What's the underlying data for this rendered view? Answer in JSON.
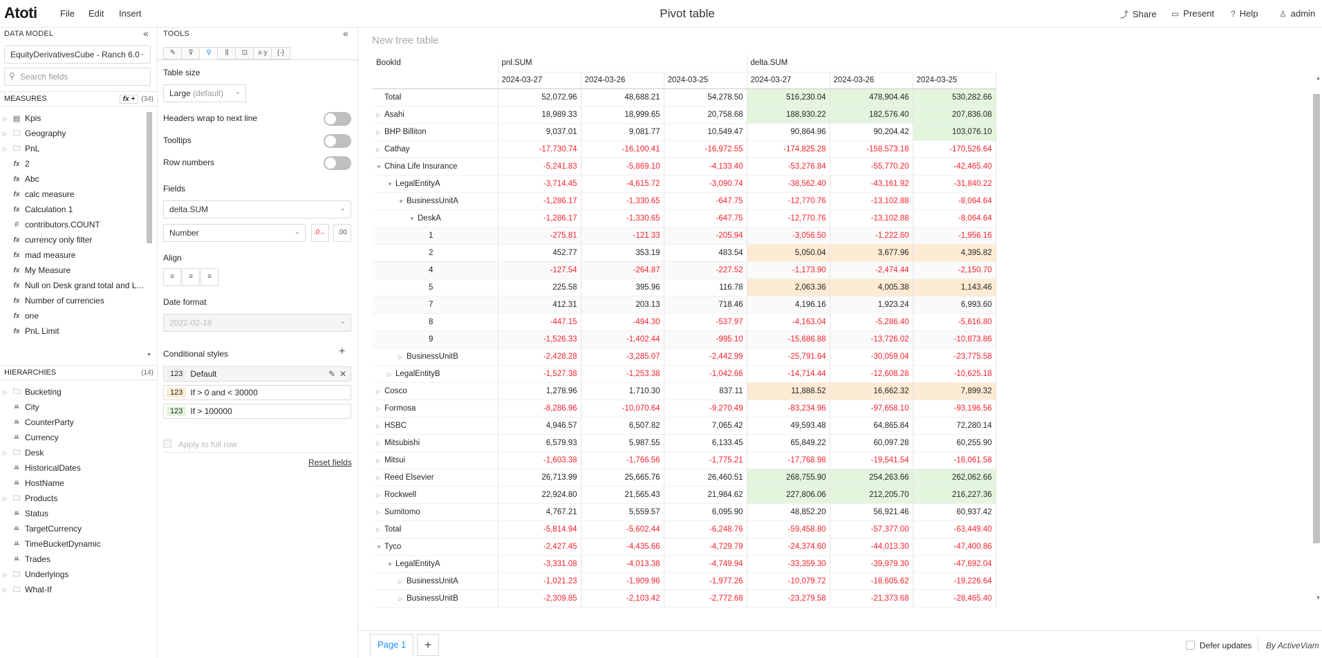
{
  "topbar": {
    "logo": "Atoti",
    "menu": [
      "File",
      "Edit",
      "Insert"
    ],
    "title": "Pivot table",
    "share": "Share",
    "present": "Present",
    "help": "Help",
    "user": "admin"
  },
  "datamodel": {
    "header": "DATA MODEL",
    "cube": "EquityDerivativesCube - Ranch 6.0",
    "search_placeholder": "Search fields",
    "measures_label": "MEASURES",
    "measures_count": "(34)",
    "measures": [
      {
        "icon": "folder",
        "label": "Kpis",
        "caret": true
      },
      {
        "icon": "folder",
        "label": "Geography",
        "caret": true
      },
      {
        "icon": "folder",
        "label": "PnL",
        "caret": true
      },
      {
        "icon": "fx",
        "label": "2"
      },
      {
        "icon": "fx",
        "label": "Abc"
      },
      {
        "icon": "fx",
        "label": "calc measure"
      },
      {
        "icon": "fx",
        "label": "Calculation 1"
      },
      {
        "icon": "#",
        "label": "contributors.COUNT"
      },
      {
        "icon": "fx",
        "label": "currency only filter"
      },
      {
        "icon": "fx",
        "label": "mad measure"
      },
      {
        "icon": "fx",
        "label": "My Measure"
      },
      {
        "icon": "fx",
        "label": "Null on Desk grand total and L..."
      },
      {
        "icon": "fx",
        "label": "Number of currencies"
      },
      {
        "icon": "fx",
        "label": "one"
      },
      {
        "icon": "fx",
        "label": "PnL Limit"
      }
    ],
    "hierarchies_label": "HIERARCHIES",
    "hierarchies_count": "(14)",
    "hierarchies": [
      {
        "label": "Bucketing",
        "caret": true,
        "folder": true
      },
      {
        "label": "City"
      },
      {
        "label": "CounterParty"
      },
      {
        "label": "Currency"
      },
      {
        "label": "Desk",
        "caret": true,
        "folder": true
      },
      {
        "label": "HistoricalDates"
      },
      {
        "label": "HostName"
      },
      {
        "label": "Products",
        "caret": true,
        "folder": true
      },
      {
        "label": "Status"
      },
      {
        "label": "TargetCurrency"
      },
      {
        "label": "TimeBucketDynamic"
      },
      {
        "label": "Trades"
      },
      {
        "label": "Underlyings",
        "caret": true,
        "folder": true
      },
      {
        "label": "What-If",
        "caret": true,
        "folder": true
      }
    ]
  },
  "tools": {
    "header": "TOOLS",
    "tabs": [
      "✎",
      "⊽",
      "⚲",
      "⫼",
      "⊡",
      "x·y",
      "{-}"
    ],
    "table_size_label": "Table size",
    "table_size_value": "Large",
    "table_size_suffix": "(default)",
    "headers_wrap": "Headers wrap to next line",
    "tooltips": "Tooltips",
    "row_numbers": "Row numbers",
    "fields_label": "Fields",
    "field_value": "delta.SUM",
    "format_value": "Number",
    "align_label": "Align",
    "date_format_label": "Date format",
    "date_format_value": "2022-02-18",
    "cond_styles_label": "Conditional styles",
    "cond_styles": [
      {
        "badge": "123",
        "label": "Default",
        "color": "#f0f0f0"
      },
      {
        "badge": "123",
        "label": "If > 0 and < 30000",
        "color": "#fdebd3"
      },
      {
        "badge": "123",
        "label": "If > 100000",
        "color": "#e3f5dd"
      }
    ],
    "apply_full_row": "Apply to full row",
    "reset_fields": "Reset fields"
  },
  "pivot": {
    "title": "New tree table",
    "row_header": "BookId",
    "measure_groups": [
      "pnl.SUM",
      "delta.SUM"
    ],
    "dates": [
      "2024-03-27",
      "2024-03-26",
      "2024-03-25",
      "2024-03-27",
      "2024-03-26",
      "2024-03-25"
    ],
    "rows": [
      {
        "label": "Total",
        "indent": 0,
        "caret": "",
        "values": [
          "52,072.96",
          "48,688.21",
          "54,278.50",
          "516,230.04",
          "478,904.46",
          "530,282.66"
        ],
        "hl": [
          "",
          "",
          "",
          "g",
          "g",
          "g"
        ]
      },
      {
        "label": "Asahi",
        "indent": 0,
        "caret": "r",
        "values": [
          "18,989.33",
          "18,999.65",
          "20,758.68",
          "188,930.22",
          "182,576.40",
          "207,836.08"
        ],
        "hl": [
          "",
          "",
          "",
          "g",
          "g",
          "g"
        ]
      },
      {
        "label": "BHP Billiton",
        "indent": 0,
        "caret": "r",
        "values": [
          "9,037.01",
          "9,081.77",
          "10,549.47",
          "90,864.96",
          "90,204.42",
          "103,076.10"
        ],
        "hl": [
          "",
          "",
          "",
          "",
          "",
          "g"
        ]
      },
      {
        "label": "Cathay",
        "indent": 0,
        "caret": "r",
        "values": [
          "-17,730.74",
          "-16,100.41",
          "-16,972.55",
          "-174,825.28",
          "-158,573.18",
          "-170,526.64"
        ],
        "hl": [
          "",
          "",
          "",
          "",
          "",
          ""
        ]
      },
      {
        "label": "China Life Insurance",
        "indent": 0,
        "caret": "d",
        "values": [
          "-5,241.83",
          "-5,869.10",
          "-4,133.40",
          "-53,276.84",
          "-55,770.20",
          "-42,465.40"
        ],
        "hl": [
          "",
          "",
          "",
          "",
          "",
          ""
        ]
      },
      {
        "label": "LegalEntityA",
        "indent": 1,
        "caret": "d",
        "values": [
          "-3,714.45",
          "-4,615.72",
          "-3,090.74",
          "-38,562.40",
          "-43,161.92",
          "-31,840.22"
        ],
        "hl": [
          "",
          "",
          "",
          "",
          "",
          ""
        ]
      },
      {
        "label": "BusinessUnitA",
        "indent": 2,
        "caret": "d",
        "values": [
          "-1,286.17",
          "-1,330.65",
          "-647.75",
          "-12,770.76",
          "-13,102.88",
          "-8,064.64"
        ],
        "hl": [
          "",
          "",
          "",
          "",
          "",
          ""
        ]
      },
      {
        "label": "DeskA",
        "indent": 3,
        "caret": "d",
        "values": [
          "-1,286.17",
          "-1,330.65",
          "-647.75",
          "-12,770.76",
          "-13,102.88",
          "-8,064.64"
        ],
        "hl": [
          "",
          "",
          "",
          "",
          "",
          ""
        ]
      },
      {
        "label": "1",
        "indent": 4,
        "caret": "",
        "alt": true,
        "values": [
          "-275.81",
          "-121.33",
          "-205.94",
          "-3,056.50",
          "-1,222.60",
          "-1,956.16"
        ],
        "hl": [
          "",
          "",
          "",
          "",
          "",
          ""
        ]
      },
      {
        "label": "2",
        "indent": 4,
        "caret": "",
        "values": [
          "452.77",
          "353.19",
          "483.54",
          "5,050.04",
          "3,677.96",
          "4,395.82"
        ],
        "hl": [
          "",
          "",
          "",
          "o",
          "o",
          "o"
        ]
      },
      {
        "label": "4",
        "indent": 4,
        "caret": "",
        "alt": true,
        "values": [
          "-127.54",
          "-264.87",
          "-227.52",
          "-1,173.90",
          "-2,474.44",
          "-2,150.70"
        ],
        "hl": [
          "",
          "",
          "",
          "",
          "",
          ""
        ]
      },
      {
        "label": "5",
        "indent": 4,
        "caret": "",
        "values": [
          "225.58",
          "395.96",
          "116.78",
          "2,063.36",
          "4,005.38",
          "1,143.46"
        ],
        "hl": [
          "",
          "",
          "",
          "o",
          "o",
          "o"
        ]
      },
      {
        "label": "7",
        "indent": 4,
        "caret": "",
        "alt": true,
        "values": [
          "412.31",
          "203.13",
          "718.46",
          "4,196.16",
          "1,923.24",
          "6,993.60"
        ],
        "hl": [
          "",
          "",
          "",
          "o",
          "o",
          "o"
        ]
      },
      {
        "label": "8",
        "indent": 4,
        "caret": "",
        "values": [
          "-447.15",
          "-494.30",
          "-537.97",
          "-4,163.04",
          "-5,286.40",
          "-5,616.80"
        ],
        "hl": [
          "",
          "",
          "",
          "",
          "",
          ""
        ]
      },
      {
        "label": "9",
        "indent": 4,
        "caret": "",
        "alt": true,
        "values": [
          "-1,526.33",
          "-1,402.44",
          "-995.10",
          "-15,686.88",
          "-13,726.02",
          "-10,873.86"
        ],
        "hl": [
          "",
          "",
          "",
          "",
          "",
          ""
        ]
      },
      {
        "label": "BusinessUnitB",
        "indent": 2,
        "caret": "r",
        "values": [
          "-2,428.28",
          "-3,285.07",
          "-2,442.99",
          "-25,791.64",
          "-30,059.04",
          "-23,775.58"
        ],
        "hl": [
          "",
          "",
          "",
          "",
          "",
          ""
        ]
      },
      {
        "label": "LegalEntityB",
        "indent": 1,
        "caret": "r",
        "values": [
          "-1,527.38",
          "-1,253.38",
          "-1,042.66",
          "-14,714.44",
          "-12,608.28",
          "-10,625.18"
        ],
        "hl": [
          "",
          "",
          "",
          "",
          "",
          ""
        ]
      },
      {
        "label": "Cosco",
        "indent": 0,
        "caret": "r",
        "values": [
          "1,278.96",
          "1,710.30",
          "837.11",
          "11,888.52",
          "16,662.32",
          "7,899.32"
        ],
        "hl": [
          "",
          "",
          "",
          "o",
          "o",
          "o"
        ]
      },
      {
        "label": "Formosa",
        "indent": 0,
        "caret": "r",
        "values": [
          "-8,286.96",
          "-10,070.64",
          "-9,270.49",
          "-83,234.96",
          "-97,658.10",
          "-93,196.56"
        ],
        "hl": [
          "",
          "",
          "",
          "",
          "",
          ""
        ]
      },
      {
        "label": "HSBC",
        "indent": 0,
        "caret": "r",
        "values": [
          "4,946.57",
          "6,507.82",
          "7,065.42",
          "49,593.48",
          "64,865.84",
          "72,280.14"
        ],
        "hl": [
          "",
          "",
          "",
          "",
          "",
          ""
        ]
      },
      {
        "label": "Mitsubishi",
        "indent": 0,
        "caret": "r",
        "values": [
          "6,579.93",
          "5,987.55",
          "6,133.45",
          "65,849.22",
          "60,097.28",
          "60,255.90"
        ],
        "hl": [
          "",
          "",
          "",
          "",
          "",
          ""
        ]
      },
      {
        "label": "Mitsui",
        "indent": 0,
        "caret": "r",
        "values": [
          "-1,603.38",
          "-1,766.56",
          "-1,775.21",
          "-17,768.98",
          "-19,541.54",
          "-16,061.58"
        ],
        "hl": [
          "",
          "",
          "",
          "",
          "",
          ""
        ]
      },
      {
        "label": "Reed Elsevier",
        "indent": 0,
        "caret": "r",
        "values": [
          "26,713.99",
          "25,665.76",
          "26,460.51",
          "268,755.90",
          "254,263.66",
          "262,062.66"
        ],
        "hl": [
          "",
          "",
          "",
          "g",
          "g",
          "g"
        ]
      },
      {
        "label": "Rockwell",
        "indent": 0,
        "caret": "r",
        "values": [
          "22,924.80",
          "21,565.43",
          "21,984.62",
          "227,806.06",
          "212,205.70",
          "216,227.36"
        ],
        "hl": [
          "",
          "",
          "",
          "g",
          "g",
          "g"
        ]
      },
      {
        "label": "Sumitomo",
        "indent": 0,
        "caret": "r",
        "values": [
          "4,767.21",
          "5,559.57",
          "6,095.90",
          "48,852.20",
          "56,921.46",
          "60,937.42"
        ],
        "hl": [
          "",
          "",
          "",
          "",
          "",
          ""
        ]
      },
      {
        "label": "Total",
        "indent": 0,
        "caret": "r",
        "values": [
          "-5,814.94",
          "-5,602.44",
          "-6,248.76",
          "-59,458.80",
          "-57,377.00",
          "-63,449.40"
        ],
        "hl": [
          "",
          "",
          "",
          "",
          "",
          ""
        ]
      },
      {
        "label": "Tyco",
        "indent": 0,
        "caret": "d",
        "values": [
          "-2,427.45",
          "-4,435.66",
          "-4,729.79",
          "-24,374.60",
          "-44,013.30",
          "-47,400.86"
        ],
        "hl": [
          "",
          "",
          "",
          "",
          "",
          ""
        ]
      },
      {
        "label": "LegalEntityA",
        "indent": 1,
        "caret": "d",
        "values": [
          "-3,331.08",
          "-4,013.38",
          "-4,749.94",
          "-33,359.30",
          "-39,979.30",
          "-47,692.04"
        ],
        "hl": [
          "",
          "",
          "",
          "",
          "",
          ""
        ]
      },
      {
        "label": "BusinessUnitA",
        "indent": 2,
        "caret": "r",
        "values": [
          "-1,021.23",
          "-1,909.96",
          "-1,977.26",
          "-10,079.72",
          "-18,605.62",
          "-19,226.64"
        ],
        "hl": [
          "",
          "",
          "",
          "",
          "",
          ""
        ]
      },
      {
        "label": "BusinessUnitB",
        "indent": 2,
        "caret": "r",
        "values": [
          "-2,309.85",
          "-2,103.42",
          "-2,772.68",
          "-23,279.58",
          "-21,373.68",
          "-28,465.40"
        ],
        "hl": [
          "",
          "",
          "",
          "",
          "",
          ""
        ]
      }
    ]
  },
  "bottombar": {
    "page_tab": "Page 1",
    "add_page": "+",
    "defer_updates": "Defer updates",
    "brand": "By ActiveViam"
  }
}
